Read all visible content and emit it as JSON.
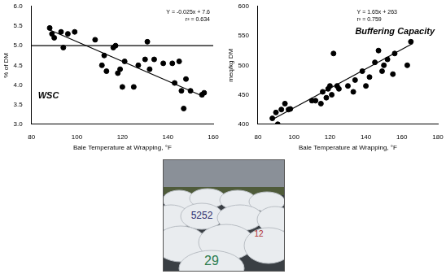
{
  "chart_data": [
    {
      "type": "scatter",
      "xlabel": "Bale Temperature at Wrapping, °F",
      "ylabel": "% of DM",
      "xlim": [
        80,
        160
      ],
      "xticks": [
        80,
        100,
        120,
        140,
        160
      ],
      "ylim": [
        3,
        6
      ],
      "yticks": [
        {
          "value": 3,
          "label": "3.0"
        },
        3.5,
        {
          "value": 4,
          "label": "4.0"
        },
        4.5,
        {
          "value": 5,
          "label": "5.0"
        },
        5.5,
        {
          "value": 6,
          "label": "6.0"
        }
      ],
      "grid": false,
      "annotations": [
        "Y = -0.025x + 7.6",
        "r² = 0.634",
        "WSC"
      ],
      "series": [
        {
          "type": "scatter",
          "color": "#000000",
          "marker": "circle",
          "x": [
            88,
            89,
            90,
            93,
            94,
            96,
            99,
            108,
            111,
            112,
            113,
            116,
            117,
            118,
            119,
            120,
            121,
            125,
            127,
            130,
            131,
            132,
            134,
            138,
            142,
            143,
            145,
            146,
            147,
            148,
            150,
            155,
            156
          ],
          "values": [
            5.45,
            5.3,
            5.2,
            5.35,
            4.95,
            5.3,
            5.35,
            5.15,
            4.5,
            4.75,
            4.35,
            4.95,
            5.0,
            4.3,
            4.4,
            3.95,
            4.6,
            3.95,
            4.5,
            4.65,
            5.1,
            4.4,
            4.65,
            4.55,
            4.55,
            4.05,
            4.6,
            3.85,
            3.4,
            4.15,
            3.85,
            3.75,
            3.8
          ]
        },
        {
          "type": "line",
          "color": "#000000",
          "line_style": "solid",
          "x": [
            88,
            156
          ],
          "values": [
            5.4,
            3.7
          ]
        },
        {
          "type": "line",
          "color": "#000000",
          "line_style": "solid",
          "x": [
            80,
            160
          ],
          "values": [
            5,
            5
          ]
        }
      ]
    },
    {
      "type": "scatter",
      "xlabel": "Bale Temperature at Wrapping, °F",
      "ylabel": "meq/kg DM",
      "xlim": [
        80,
        180
      ],
      "xticks": [
        80,
        100,
        120,
        140,
        160,
        180
      ],
      "ylim": [
        400,
        600
      ],
      "yticks": [
        400,
        450,
        500,
        550,
        600
      ],
      "grid": false,
      "annotations": [
        "Y = 1.65x + 263",
        "r² = 0.759",
        "Buffering Capacity"
      ],
      "series": [
        {
          "type": "scatter",
          "color": "#000000",
          "marker": "circle",
          "x": [
            88,
            90,
            91,
            93,
            95,
            97,
            98,
            110,
            112,
            115,
            116,
            118,
            119,
            120,
            121,
            122,
            124,
            125,
            130,
            133,
            134,
            138,
            140,
            142,
            145,
            147,
            149,
            150,
            152,
            155,
            156,
            163,
            165
          ],
          "values": [
            410,
            420,
            400,
            425,
            435,
            425,
            426,
            440,
            440,
            435,
            455,
            445,
            460,
            465,
            450,
            520,
            465,
            460,
            465,
            455,
            475,
            490,
            465,
            480,
            505,
            525,
            490,
            500,
            510,
            485,
            520,
            500,
            540
          ]
        },
        {
          "type": "line",
          "color": "#000000",
          "line_style": "solid",
          "x": [
            88,
            166
          ],
          "values": [
            408,
            537
          ]
        }
      ]
    }
  ],
  "photo": {
    "labels": [
      "5252",
      "12",
      "29"
    ]
  }
}
